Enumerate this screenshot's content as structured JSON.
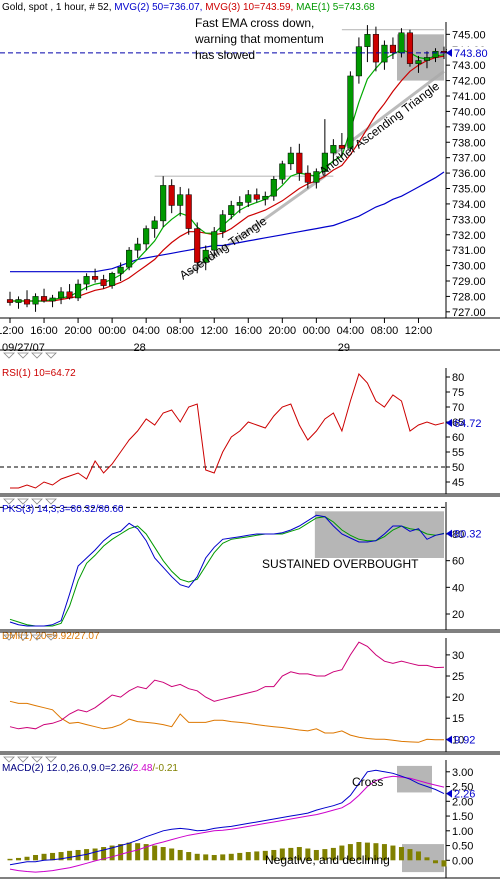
{
  "chart_data": [
    {
      "type": "candlestick",
      "header": {
        "title": "Gold, spot , 1 hour, # 52,",
        "indicators": [
          {
            "label": "MVG(2) 50=736.07,",
            "color": "#0000cc"
          },
          {
            "label": "MVG(3) 10=743.59,",
            "color": "#cc0000"
          },
          {
            "label": "MAE(1) 5=743.68",
            "color": "#009900"
          }
        ]
      },
      "yticks": [
        "745.00",
        "744.00",
        "743.00",
        "742.00",
        "741.00",
        "740.00",
        "739.00",
        "738.00",
        "737.00",
        "736.00",
        "735.00",
        "734.00",
        "733.00",
        "732.00",
        "731.00",
        "730.00",
        "729.00",
        "728.00",
        "727.00"
      ],
      "ylim": [
        726.6,
        745.8
      ],
      "last_price": "743.80",
      "last_price_value": 743.8,
      "xticks": [
        "12:00",
        "16:00",
        "20:00",
        "00:00",
        "04:00",
        "08:00",
        "12:00",
        "16:00",
        "20:00",
        "00:00",
        "04:00",
        "08:00",
        "12:00"
      ],
      "date_labels": [
        "09/27/07",
        "28",
        "29"
      ],
      "candles": [
        [
          727.8,
          728.3,
          727.4,
          727.6
        ],
        [
          727.6,
          728.0,
          727.2,
          727.8
        ],
        [
          727.8,
          728.4,
          727.3,
          727.5
        ],
        [
          727.5,
          728.2,
          727.0,
          728.0
        ],
        [
          728.0,
          728.5,
          727.6,
          727.7
        ],
        [
          727.7,
          728.1,
          727.3,
          727.9
        ],
        [
          727.9,
          728.6,
          727.5,
          728.3
        ],
        [
          728.3,
          728.8,
          727.8,
          727.9
        ],
        [
          727.9,
          729.1,
          727.7,
          728.8
        ],
        [
          728.8,
          729.5,
          728.4,
          729.3
        ],
        [
          729.3,
          729.8,
          728.9,
          729.1
        ],
        [
          729.1,
          729.4,
          728.5,
          728.7
        ],
        [
          728.7,
          729.6,
          728.5,
          729.5
        ],
        [
          729.5,
          730.2,
          729.0,
          729.9
        ],
        [
          729.9,
          731.2,
          729.7,
          731.0
        ],
        [
          731.0,
          731.8,
          730.5,
          731.4
        ],
        [
          731.4,
          732.6,
          731.0,
          732.4
        ],
        [
          732.4,
          733.2,
          731.8,
          732.9
        ],
        [
          732.9,
          735.8,
          732.5,
          735.2
        ],
        [
          735.2,
          735.6,
          733.4,
          733.9
        ],
        [
          733.9,
          735.1,
          733.2,
          734.6
        ],
        [
          734.6,
          735.0,
          732.0,
          732.4
        ],
        [
          732.4,
          732.8,
          729.5,
          730.2
        ],
        [
          730.2,
          731.3,
          729.7,
          731.0
        ],
        [
          731.0,
          732.5,
          730.6,
          732.2
        ],
        [
          732.2,
          733.6,
          731.8,
          733.3
        ],
        [
          733.3,
          734.2,
          733.0,
          733.9
        ],
        [
          733.9,
          734.5,
          733.4,
          734.1
        ],
        [
          734.1,
          734.9,
          733.8,
          734.6
        ],
        [
          734.6,
          735.0,
          734.1,
          734.3
        ],
        [
          734.3,
          734.8,
          733.9,
          734.5
        ],
        [
          734.5,
          735.8,
          734.2,
          735.6
        ],
        [
          735.6,
          736.8,
          735.3,
          736.6
        ],
        [
          736.6,
          737.7,
          736.2,
          737.3
        ],
        [
          737.3,
          737.9,
          735.5,
          736.0
        ],
        [
          736.0,
          736.5,
          735.0,
          735.4
        ],
        [
          735.4,
          736.3,
          735.0,
          736.1
        ],
        [
          736.1,
          739.5,
          735.8,
          737.3
        ],
        [
          737.3,
          738.2,
          736.6,
          737.8
        ],
        [
          737.8,
          738.6,
          737.1,
          737.6
        ],
        [
          737.6,
          742.6,
          737.4,
          742.3
        ],
        [
          742.3,
          744.8,
          741.8,
          744.2
        ],
        [
          744.2,
          745.6,
          743.2,
          745.0
        ],
        [
          745.0,
          745.5,
          742.6,
          743.2
        ],
        [
          743.2,
          744.6,
          742.7,
          744.3
        ],
        [
          744.3,
          744.8,
          743.4,
          743.8
        ],
        [
          743.8,
          745.4,
          743.5,
          745.1
        ],
        [
          745.1,
          745.3,
          742.9,
          743.1
        ],
        [
          743.1,
          743.6,
          742.5,
          743.3
        ],
        [
          743.3,
          743.9,
          742.8,
          743.5
        ],
        [
          743.5,
          744.1,
          743.2,
          743.9
        ],
        [
          743.9,
          744.2,
          743.4,
          743.8
        ]
      ],
      "series": [
        {
          "name": "MVG(2) 50",
          "values": [
            729.6,
            729.6,
            729.6,
            729.6,
            729.6,
            729.6,
            729.6,
            729.6,
            729.6,
            729.6,
            729.6,
            729.7,
            729.8,
            730.0,
            730.2,
            730.4,
            730.5,
            730.6,
            730.7,
            730.8,
            730.9,
            731.0,
            731.1,
            731.2,
            731.3,
            731.3,
            731.4,
            731.5,
            731.6,
            731.7,
            731.8,
            731.9,
            732.0,
            732.1,
            732.2,
            732.3,
            732.4,
            732.5,
            732.6,
            732.8,
            733.0,
            733.2,
            733.5,
            733.8,
            734.0,
            734.3,
            734.5,
            734.8,
            735.1,
            735.4,
            735.7,
            736.07
          ]
        },
        {
          "name": "MVG(3) 10",
          "values": [
            727.7,
            727.7,
            727.7,
            727.7,
            727.7,
            727.7,
            727.8,
            727.9,
            728.0,
            728.2,
            728.4,
            728.5,
            728.7,
            728.9,
            729.2,
            729.6,
            730.0,
            730.4,
            731.0,
            731.5,
            731.9,
            732.2,
            732.2,
            732.1,
            732.0,
            732.1,
            732.4,
            732.8,
            733.2,
            733.4,
            733.6,
            733.9,
            734.2,
            734.6,
            735.0,
            735.3,
            735.5,
            735.8,
            736.2,
            736.5,
            737.2,
            738.0,
            738.9,
            739.8,
            740.5,
            741.3,
            742.0,
            742.6,
            743.0,
            743.3,
            743.5,
            743.59
          ]
        },
        {
          "name": "MAE(1) 5",
          "values": [
            727.7,
            727.7,
            727.7,
            727.7,
            727.7,
            727.8,
            727.9,
            728.0,
            728.3,
            728.6,
            728.8,
            728.9,
            729.1,
            729.4,
            729.9,
            730.4,
            731.0,
            731.6,
            732.5,
            733.0,
            733.4,
            733.2,
            732.5,
            732.1,
            732.1,
            732.6,
            733.1,
            733.6,
            733.9,
            734.1,
            734.3,
            734.7,
            735.2,
            735.8,
            736.0,
            735.9,
            735.8,
            736.3,
            736.8,
            737.1,
            738.8,
            740.6,
            742.1,
            742.8,
            743.4,
            743.7,
            744.0,
            743.8,
            743.5,
            743.4,
            743.6,
            743.68
          ]
        }
      ],
      "annotations": [
        {
          "lines": [
            "Fast EMA cross down,",
            "warning that momentum",
            "has slowed"
          ]
        },
        {
          "text": "Ascending Triangle"
        },
        {
          "text": "Another Ascending Triangle"
        }
      ]
    },
    {
      "type": "line",
      "legend": "RSI(1) 10=64.72",
      "color": "#cc0000",
      "ylim": [
        41,
        83
      ],
      "yticks": [
        80,
        75,
        70,
        65,
        60,
        55,
        50,
        45
      ],
      "reference_line": 50,
      "last_value_label": "64.72",
      "series": [
        {
          "values": [
            43,
            43,
            44,
            43,
            45,
            44,
            46,
            47,
            48,
            46,
            52,
            48,
            51,
            55,
            59,
            62,
            66,
            64,
            68,
            69,
            65,
            70,
            71,
            49,
            48,
            55,
            60,
            62,
            65,
            64,
            63,
            67,
            70,
            71,
            64,
            59,
            62,
            66,
            68,
            62,
            72,
            81,
            78,
            72,
            70,
            74,
            72,
            62,
            64,
            65,
            64,
            64.72
          ]
        }
      ]
    },
    {
      "type": "line",
      "legend": "PKS(3) 14,3,3=80.32/80.60",
      "colors": [
        "#0000cc",
        "#009900"
      ],
      "ylim": [
        8,
        104
      ],
      "yticks": [
        80,
        60,
        40,
        20
      ],
      "reference_line": 100,
      "last_value_label": "80.32",
      "highlight": {
        "from_index": 37,
        "to_index": 51,
        "label": "SUSTAINED OVERBOUGHT"
      },
      "series": [
        {
          "name": "%K",
          "values": [
            14,
            12,
            11,
            11,
            11,
            12,
            15,
            35,
            56,
            62,
            68,
            75,
            80,
            82,
            88,
            84,
            75,
            62,
            55,
            48,
            42,
            40,
            48,
            62,
            70,
            76,
            77,
            78,
            79,
            80,
            80,
            80,
            81,
            83,
            86,
            90,
            94,
            93,
            86,
            80,
            77,
            74,
            74,
            75,
            80,
            86,
            86,
            82,
            84,
            76,
            79,
            80.32
          ]
        },
        {
          "name": "%D",
          "values": [
            16,
            14,
            12,
            11,
            11,
            11,
            13,
            26,
            45,
            58,
            64,
            71,
            76,
            80,
            84,
            86,
            80,
            70,
            60,
            52,
            46,
            44,
            46,
            56,
            66,
            73,
            76,
            77,
            78,
            79,
            80,
            80,
            80,
            82,
            84,
            88,
            92,
            93,
            89,
            83,
            79,
            76,
            75,
            75,
            78,
            83,
            86,
            84,
            83,
            80,
            79,
            80.6
          ]
        }
      ]
    },
    {
      "type": "line",
      "legend": "DMI(1) 20=9.92/27.07",
      "colors": [
        "#dd7700",
        "#cc0077"
      ],
      "ylim": [
        7,
        34
      ],
      "yticks": [
        30,
        25,
        20,
        15,
        10
      ],
      "last_value_label": "9.92",
      "series": [
        {
          "name": "-DI",
          "values": [
            19,
            18.5,
            18.5,
            18,
            17.5,
            17,
            15,
            13.8,
            14,
            13.5,
            13,
            12.5,
            12.8,
            13.5,
            14.8,
            14.2,
            14,
            13.8,
            13.5,
            13,
            16,
            14,
            14,
            14,
            14.5,
            14.5,
            14.2,
            14,
            13.8,
            13.5,
            13.2,
            13,
            12.8,
            12.5,
            12.2,
            12,
            12.5,
            11.5,
            11.5,
            12,
            11,
            10.5,
            10.2,
            10,
            10,
            9.8,
            9.5,
            9.4,
            9.3,
            10,
            9.9,
            9.92
          ]
        },
        {
          "name": "+DI",
          "values": [
            13,
            12.5,
            12.8,
            12.5,
            13.5,
            13.8,
            14.5,
            16,
            17,
            16.5,
            17.5,
            19,
            20.5,
            20,
            21.5,
            22.5,
            22,
            24,
            23.5,
            22.5,
            23,
            22,
            21.5,
            20,
            19,
            19.5,
            20,
            20.5,
            21,
            21.5,
            22.5,
            22.5,
            25,
            26,
            25.5,
            25.5,
            25,
            25,
            26,
            26.5,
            30,
            33,
            32,
            30,
            28.5,
            28,
            28.5,
            28,
            27.5,
            27.5,
            27,
            27.07
          ]
        }
      ]
    },
    {
      "type": "line_histogram",
      "legend": {
        "base": "MACD(2) 12.0,26.0,9.0=2.26/",
        "signal": "2.48",
        "histogram": "/-0.21"
      },
      "colors": {
        "macd": "#0000cc",
        "signal": "#cc00cc",
        "histogram": "#808000"
      },
      "ylim": [
        -0.6,
        3.4
      ],
      "yticks": [
        "3.00",
        "2.50",
        "2.00",
        "1.50",
        "1.00",
        "0.50",
        "0.00"
      ],
      "last_value_label": "2.26",
      "series": [
        {
          "name": "MACD",
          "values": [
            -0.15,
            -0.1,
            -0.05,
            -0.05,
            0,
            0.02,
            0.05,
            0.1,
            0.15,
            0.2,
            0.28,
            0.35,
            0.42,
            0.5,
            0.58,
            0.68,
            0.8,
            0.9,
            1.0,
            1.05,
            1.08,
            1.05,
            1.0,
            1.02,
            1.08,
            1.12,
            1.15,
            1.2,
            1.25,
            1.3,
            1.35,
            1.4,
            1.45,
            1.5,
            1.55,
            1.6,
            1.7,
            1.78,
            1.85,
            1.95,
            2.2,
            2.6,
            3.0,
            3.05,
            3.0,
            2.95,
            2.85,
            2.75,
            2.6,
            2.5,
            2.4,
            2.26
          ]
        },
        {
          "name": "Signal",
          "values": [
            -0.3,
            -0.35,
            -0.38,
            -0.4,
            -0.38,
            -0.35,
            -0.3,
            -0.25,
            -0.18,
            -0.1,
            -0.02,
            0.05,
            0.12,
            0.2,
            0.28,
            0.35,
            0.45,
            0.55,
            0.62,
            0.7,
            0.78,
            0.85,
            0.9,
            0.95,
            1.0,
            1.02,
            1.05,
            1.1,
            1.15,
            1.2,
            1.25,
            1.3,
            1.35,
            1.4,
            1.45,
            1.5,
            1.55,
            1.62,
            1.7,
            1.78,
            1.95,
            2.2,
            2.5,
            2.7,
            2.8,
            2.85,
            2.82,
            2.78,
            2.7,
            2.62,
            2.55,
            2.48
          ]
        },
        {
          "name": "Histogram",
          "values": [
            0.05,
            0.08,
            0.12,
            0.18,
            0.22,
            0.25,
            0.28,
            0.32,
            0.35,
            0.38,
            0.4,
            0.45,
            0.5,
            0.55,
            0.6,
            0.58,
            0.55,
            0.5,
            0.45,
            0.4,
            0.35,
            0.28,
            0.22,
            0.2,
            0.18,
            0.2,
            0.22,
            0.25,
            0.28,
            0.3,
            0.32,
            0.35,
            0.4,
            0.42,
            0.45,
            0.4,
            0.35,
            0.38,
            0.42,
            0.5,
            0.55,
            0.62,
            0.6,
            0.58,
            0.55,
            0.5,
            0.45,
            0.38,
            0.3,
            0.1,
            -0.1,
            -0.21
          ]
        }
      ],
      "annotations": [
        {
          "text": "Cross"
        },
        {
          "text": "Negative, and declining"
        }
      ]
    }
  ]
}
